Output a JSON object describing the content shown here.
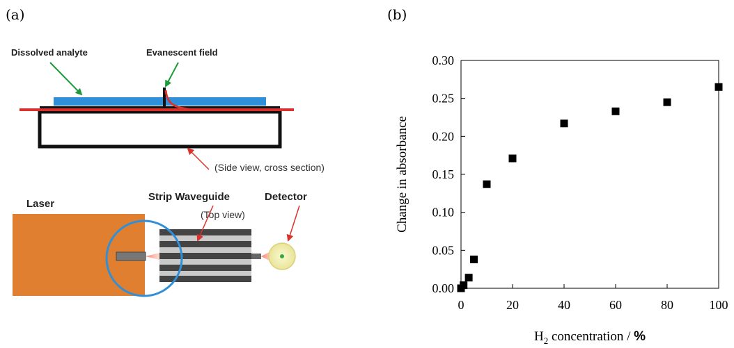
{
  "panels": {
    "a_label": "(a)",
    "b_label": "(b)"
  },
  "diagram": {
    "dissolved_analyte": "Dissolved analyte",
    "evanescent_field": "Evanescent field",
    "side_view": "(Side view, cross section)",
    "laser": "Laser",
    "strip_waveguide": "Strip Waveguide",
    "detector": "Detector",
    "top_view": "(Top view)",
    "colors": {
      "analyte_layer": "#2f8fd8",
      "guided_light": "#d9312b",
      "laser_body": "#e07f30",
      "annotation_arrow_green": "#1a9a3a",
      "annotation_arrow_red": "#d9312b",
      "detector": "#f3f0a8"
    }
  },
  "chart_data": {
    "type": "scatter",
    "xlabel_main": "H",
    "xlabel_sub": "2",
    "xlabel_rest": " concentration / ",
    "xlabel_unit": "%",
    "ylabel": "Change in absorbance",
    "xlim": [
      0,
      100
    ],
    "ylim": [
      0,
      0.3
    ],
    "xticks": [
      "0",
      "20",
      "40",
      "60",
      "80",
      "100"
    ],
    "yticks": [
      "0.00",
      "0.05",
      "0.10",
      "0.15",
      "0.20",
      "0.25",
      "0.30"
    ],
    "marker": "filled-square",
    "points": [
      {
        "x": 0,
        "y": 0.0
      },
      {
        "x": 1,
        "y": 0.004
      },
      {
        "x": 3,
        "y": 0.014
      },
      {
        "x": 5,
        "y": 0.038
      },
      {
        "x": 10,
        "y": 0.137
      },
      {
        "x": 20,
        "y": 0.171
      },
      {
        "x": 40,
        "y": 0.217
      },
      {
        "x": 60,
        "y": 0.233
      },
      {
        "x": 80,
        "y": 0.245
      },
      {
        "x": 100,
        "y": 0.265
      }
    ]
  }
}
